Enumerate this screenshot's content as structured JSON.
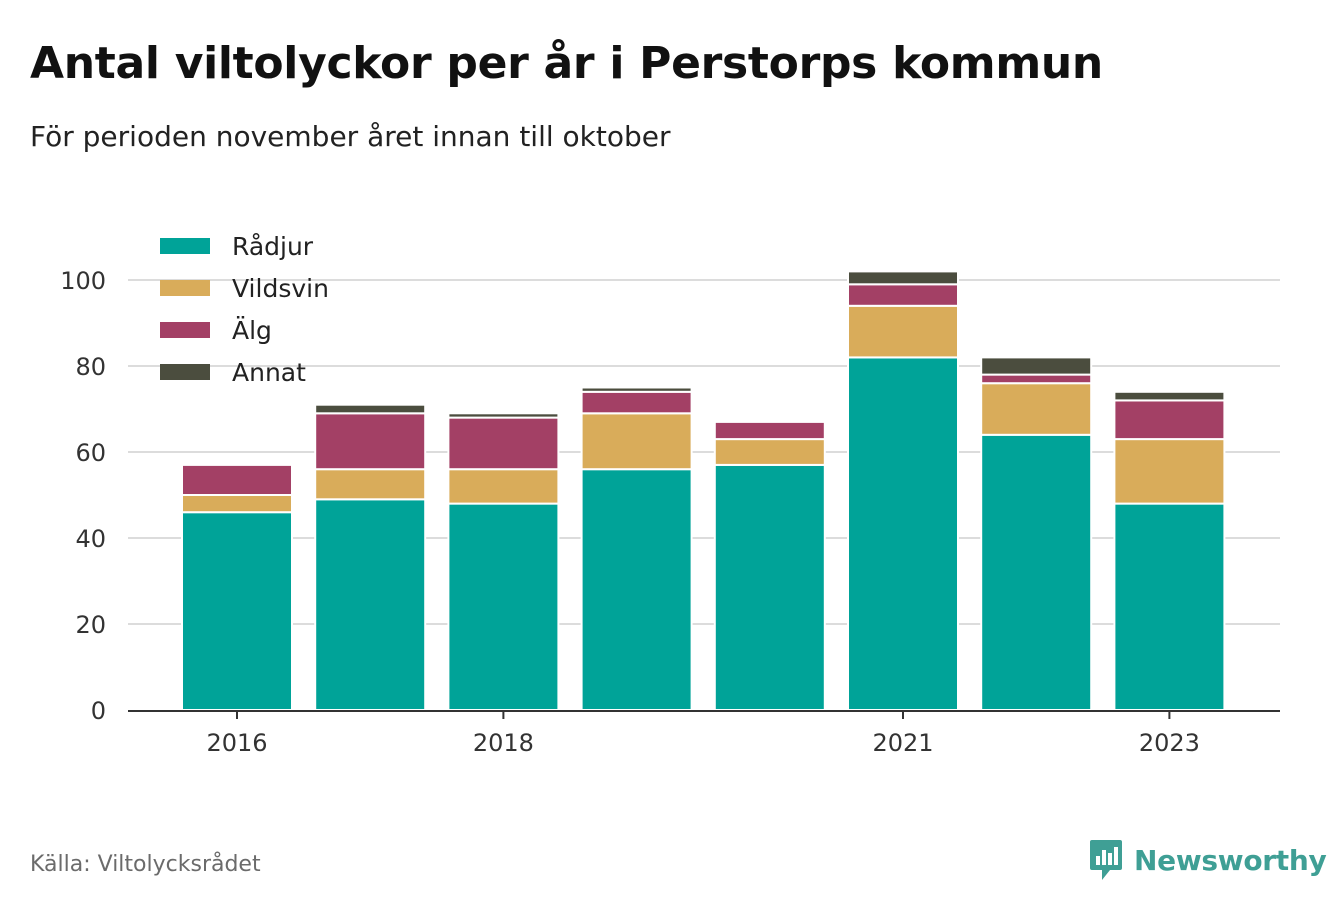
{
  "title": "Antal viltolyckor per år i Perstorps kommun",
  "subtitle": "För perioden november året innan till oktober",
  "source": "Källa: Viltolycksrådet",
  "brand": {
    "name": "Newsworthy",
    "icon": "newsworthy-logo-icon",
    "color": "#3f9f95"
  },
  "chart_data": {
    "type": "bar",
    "stacked": true,
    "categories": [
      "2016",
      "2017",
      "2018",
      "2019",
      "2020",
      "2021",
      "2022",
      "2023"
    ],
    "x_tick_labels": [
      "2016",
      "",
      "2018",
      "",
      "",
      "2021",
      "",
      "2023"
    ],
    "series": [
      {
        "name": "Rådjur",
        "color": "#00a398",
        "values": [
          46,
          49,
          48,
          56,
          57,
          82,
          64,
          48
        ]
      },
      {
        "name": "Vildsvin",
        "color": "#d9ac5a",
        "values": [
          4,
          7,
          8,
          13,
          6,
          12,
          12,
          15
        ]
      },
      {
        "name": "Älg",
        "color": "#a34065",
        "values": [
          7,
          13,
          12,
          5,
          4,
          5,
          2,
          9
        ]
      },
      {
        "name": "Annat",
        "color": "#4b4d3e",
        "values": [
          0,
          2,
          1,
          1,
          0,
          3,
          4,
          2
        ]
      }
    ],
    "ylim": [
      0,
      110
    ],
    "yticks": [
      0,
      20,
      40,
      60,
      80,
      100
    ],
    "grid": true,
    "legend": "top-left",
    "xlabel": "",
    "ylabel": ""
  }
}
